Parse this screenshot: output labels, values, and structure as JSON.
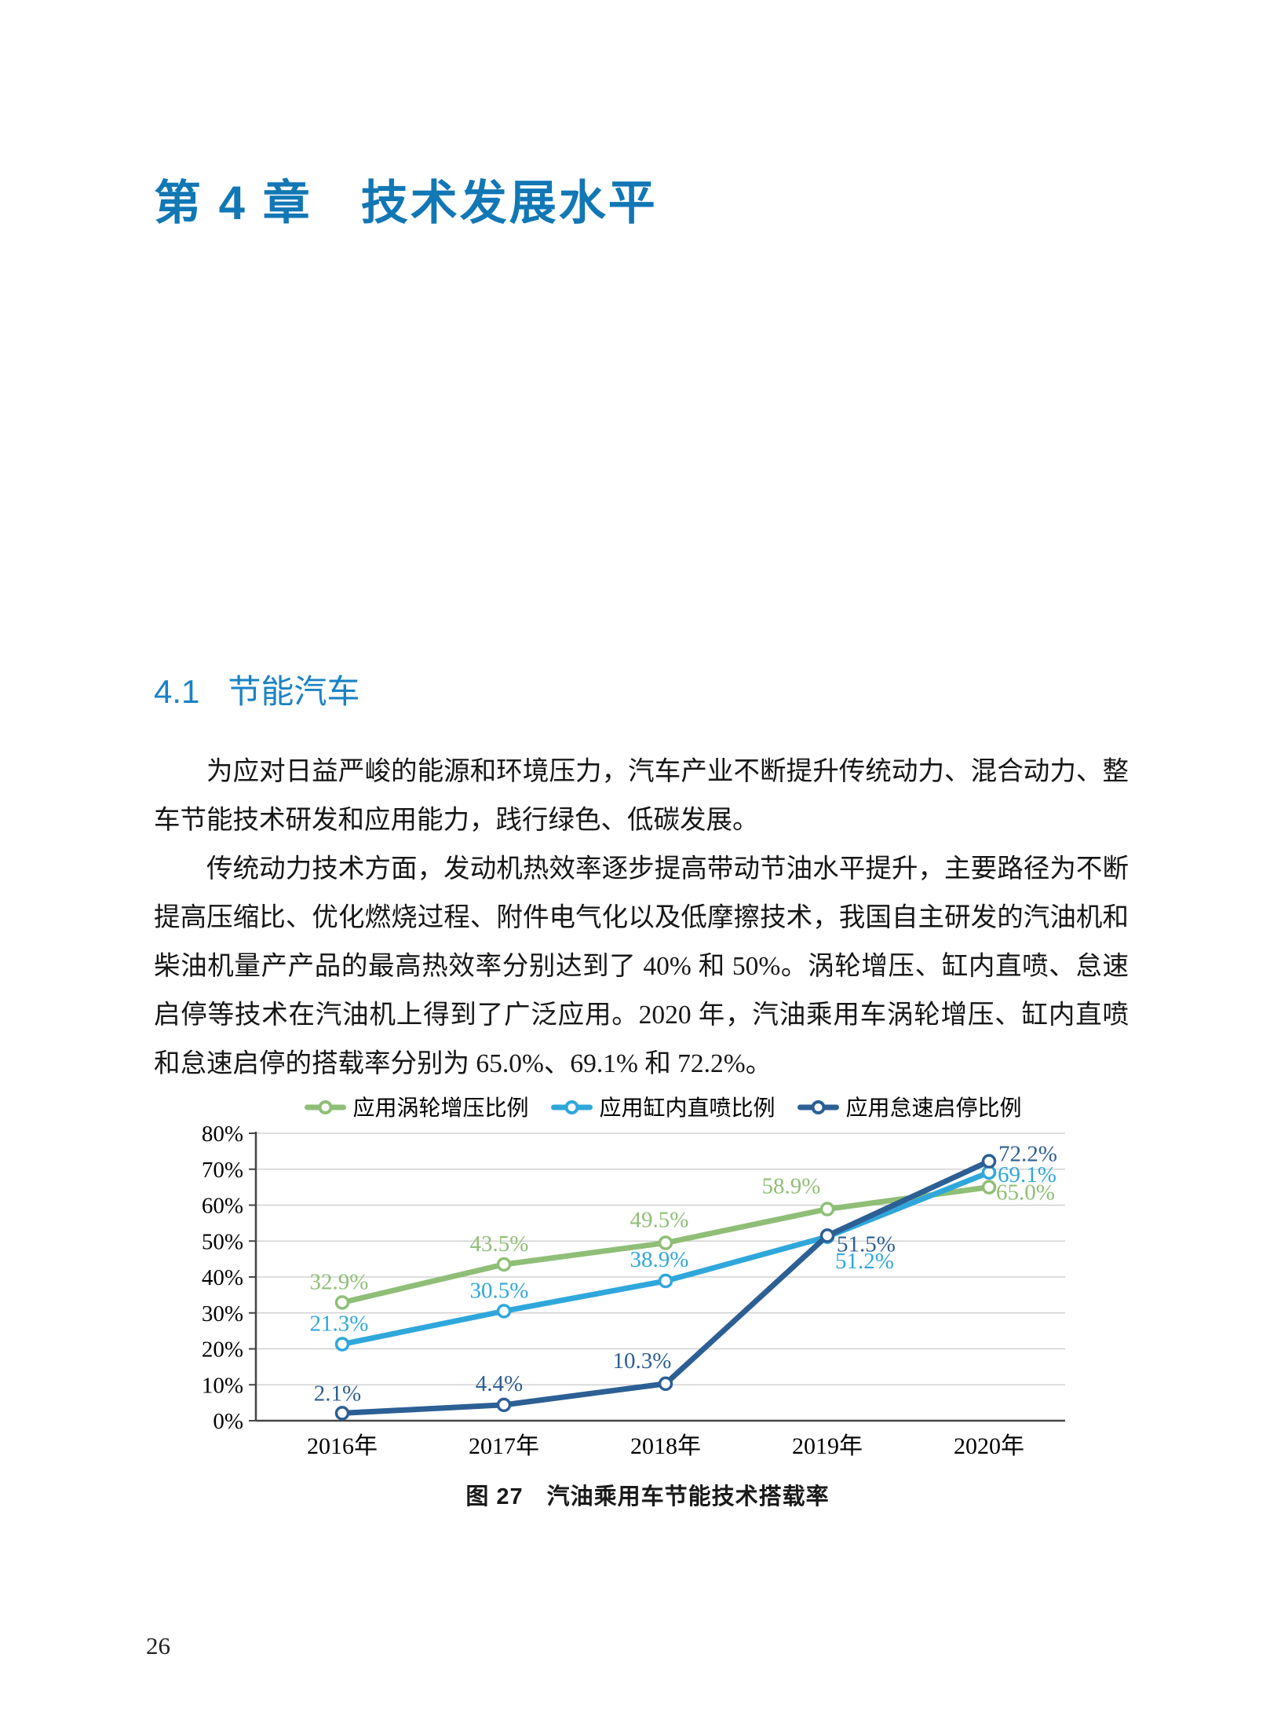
{
  "page": {
    "chapter_label": "第 4 章",
    "chapter_title": "技术发展水平",
    "section_number": "4.1",
    "section_title": "节能汽车",
    "paragraph1": "为应对日益严峻的能源和环境压力，汽车产业不断提升传统动力、混合动力、整车节能技术研发和应用能力，践行绿色、低碳发展。",
    "paragraph2": "传统动力技术方面，发动机热效率逐步提高带动节油水平提升，主要路径为不断提高压缩比、优化燃烧过程、附件电气化以及低摩擦技术，我国自主研发的汽油机和柴油机量产产品的最高热效率分别达到了 40% 和 50%。涡轮增压、缸内直喷、怠速启停等技术在汽油机上得到了广泛应用。2020 年，汽油乘用车涡轮增压、缸内直喷和怠速启停的搭载率分别为 65.0%、69.1% 和 72.2%。",
    "figure_caption": "图 27　汽油乘用车节能技术搭载率",
    "page_number": "26",
    "accent_blue": "#1177B5",
    "section_blue": "#1B82C4"
  },
  "chart_data": {
    "type": "line",
    "title": "",
    "xlabel": "",
    "ylabel": "",
    "categories": [
      "2016年",
      "2017年",
      "2018年",
      "2019年",
      "2020年"
    ],
    "series": [
      {
        "name": "应用涡轮增压比例",
        "color": "#8FBE77",
        "values": [
          32.9,
          43.5,
          49.5,
          58.9,
          65.0
        ]
      },
      {
        "name": "应用缸内直喷比例",
        "color": "#2FA7DB",
        "values": [
          21.3,
          30.5,
          38.9,
          51.2,
          69.1
        ]
      },
      {
        "name": "应用怠速启停比例",
        "color": "#2C5F94",
        "values": [
          2.1,
          4.4,
          10.3,
          51.5,
          72.2
        ]
      }
    ],
    "ylim": [
      0,
      80
    ],
    "ytick_step": 10,
    "ytick_suffix": "%",
    "grid": true,
    "legend_position": "top",
    "data_labels": true,
    "data_label_format": "0.0%"
  }
}
